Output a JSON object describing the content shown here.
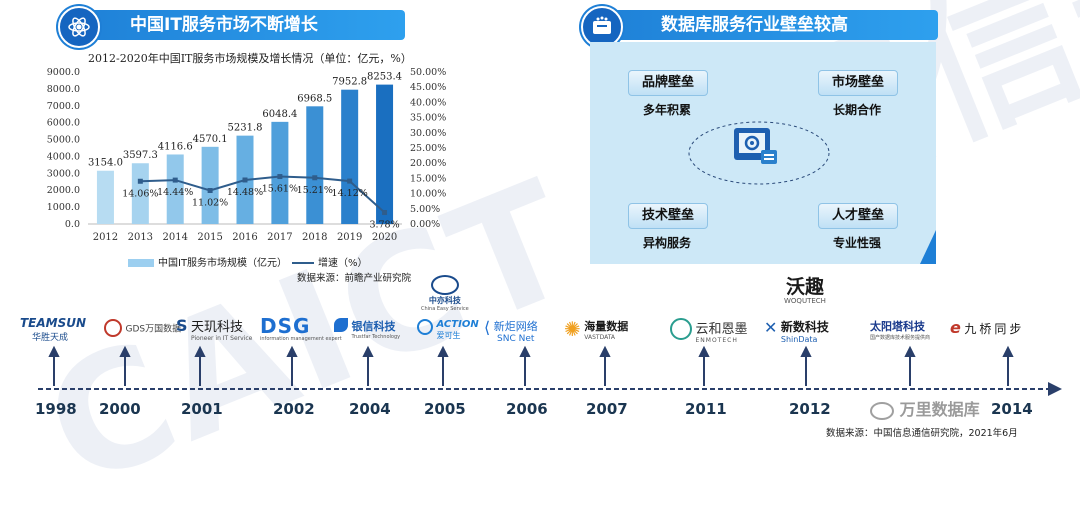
{
  "left_banner": {
    "title": "中国IT服务市场不断增长",
    "icon": "atom-icon"
  },
  "right_banner": {
    "title": "数据库服务行业壁垒较高",
    "icon": "database-icon"
  },
  "watermark": "CAICT 中国信通院",
  "chart_data": {
    "type": "bar",
    "title": "2012-2020年中国IT服务市场规模及增长情况（单位：亿元，%）",
    "categories": [
      "2012",
      "2013",
      "2014",
      "2015",
      "2016",
      "2017",
      "2018",
      "2019",
      "2020"
    ],
    "series": [
      {
        "name": "中国IT服务市场规模（亿元）",
        "type": "bar",
        "axis": "left",
        "values": [
          3154.0,
          3597.3,
          4116.6,
          4570.1,
          5231.8,
          6048.4,
          6968.5,
          7952.8,
          8253.4
        ],
        "labels": [
          "3154.0",
          "3597.3",
          "4116.6",
          "4570.1",
          "5231.8",
          "6048.4",
          "6968.5",
          "7952.8",
          "8253.4"
        ]
      },
      {
        "name": "增速（%）",
        "type": "line",
        "axis": "right",
        "values": [
          null,
          14.06,
          14.44,
          11.02,
          14.48,
          15.61,
          15.21,
          14.12,
          3.78
        ],
        "labels": [
          "",
          "14.06%",
          "14.44%",
          "11.02%",
          "14.48%",
          "15.61%",
          "15.21%",
          "14.12%",
          "3.78%"
        ]
      }
    ],
    "y_left": {
      "range": [
        0,
        9000
      ],
      "ticks": [
        "0.0",
        "1000.0",
        "2000.0",
        "3000.0",
        "4000.0",
        "5000.0",
        "6000.0",
        "7000.0",
        "8000.0",
        "9000.0"
      ]
    },
    "y_right": {
      "range": [
        0,
        50
      ],
      "ticks": [
        "0.00%",
        "5.00%",
        "10.00%",
        "15.00%",
        "20.00%",
        "25.00%",
        "30.00%",
        "35.00%",
        "40.00%",
        "45.00%",
        "50.00%"
      ]
    },
    "bar_colors": [
      "#b7dcf2",
      "#a6d3ef",
      "#92c8eb",
      "#7ebde7",
      "#66afe2",
      "#4f9fdb",
      "#3b90d4",
      "#2a80cc",
      "#1a6fc0"
    ],
    "line_color": "#2f5d8c",
    "legend_position": "bottom",
    "source": "数据来源：前瞻产业研究院"
  },
  "barriers": {
    "brand": {
      "title": "品牌壁垒",
      "sub": "多年积累"
    },
    "market": {
      "title": "市场壁垒",
      "sub": "长期合作"
    },
    "tech": {
      "title": "技术壁垒",
      "sub": "异构服务"
    },
    "talent": {
      "title": "人才壁垒",
      "sub": "专业性强"
    },
    "center_icon": "server-gear-icon"
  },
  "timeline": {
    "years": [
      "1998",
      "2000",
      "2001",
      "2002",
      "2004",
      "2005",
      "2006",
      "2007",
      "2011",
      "2012",
      "2014"
    ],
    "logos": [
      {
        "name": "TEAMSUN",
        "sub": "华胜天成",
        "color": "#1a4b8c"
      },
      {
        "name": "GDS万国数据",
        "sub": "",
        "color": "#444444"
      },
      {
        "name": "天玑科技",
        "sub": "Pioneer in IT Service",
        "color": "#1a1a1a"
      },
      {
        "name": "DSG",
        "sub": "information management expert",
        "color": "#1e6fd0"
      },
      {
        "name": "银信科技",
        "sub": "Trustfar Technology",
        "color": "#1e5fb0"
      },
      {
        "name": "ACTION",
        "sub": "爱可生",
        "color": "#1e7fd6"
      },
      {
        "name": "中亦科技",
        "sub": "China Easy Service",
        "color": "#1a4b8c"
      },
      {
        "name": "新炬网络",
        "sub": "SNC Net",
        "color": "#1e6fd0"
      },
      {
        "name": "海量数据",
        "sub": "VASTDATA",
        "color": "#1a1a1a"
      },
      {
        "name": "云和恩墨",
        "sub": "ENMOTECH",
        "color": "#333333"
      },
      {
        "name": "新数科技",
        "sub": "ShinData",
        "color": "#1a1a1a"
      },
      {
        "name": "沃趣",
        "sub": "WOQUTECH",
        "color": "#1a1a1a"
      },
      {
        "name": "太阳塔科技",
        "sub": "国产数据库技术服务提供商",
        "color": "#1a3a8c"
      },
      {
        "name": "九桥同步",
        "sub": "",
        "color": "#1a1a1a"
      }
    ],
    "source": "数据来源：中国信息通信研究院，2021年6月"
  },
  "wechat_mark": "万里数据库"
}
